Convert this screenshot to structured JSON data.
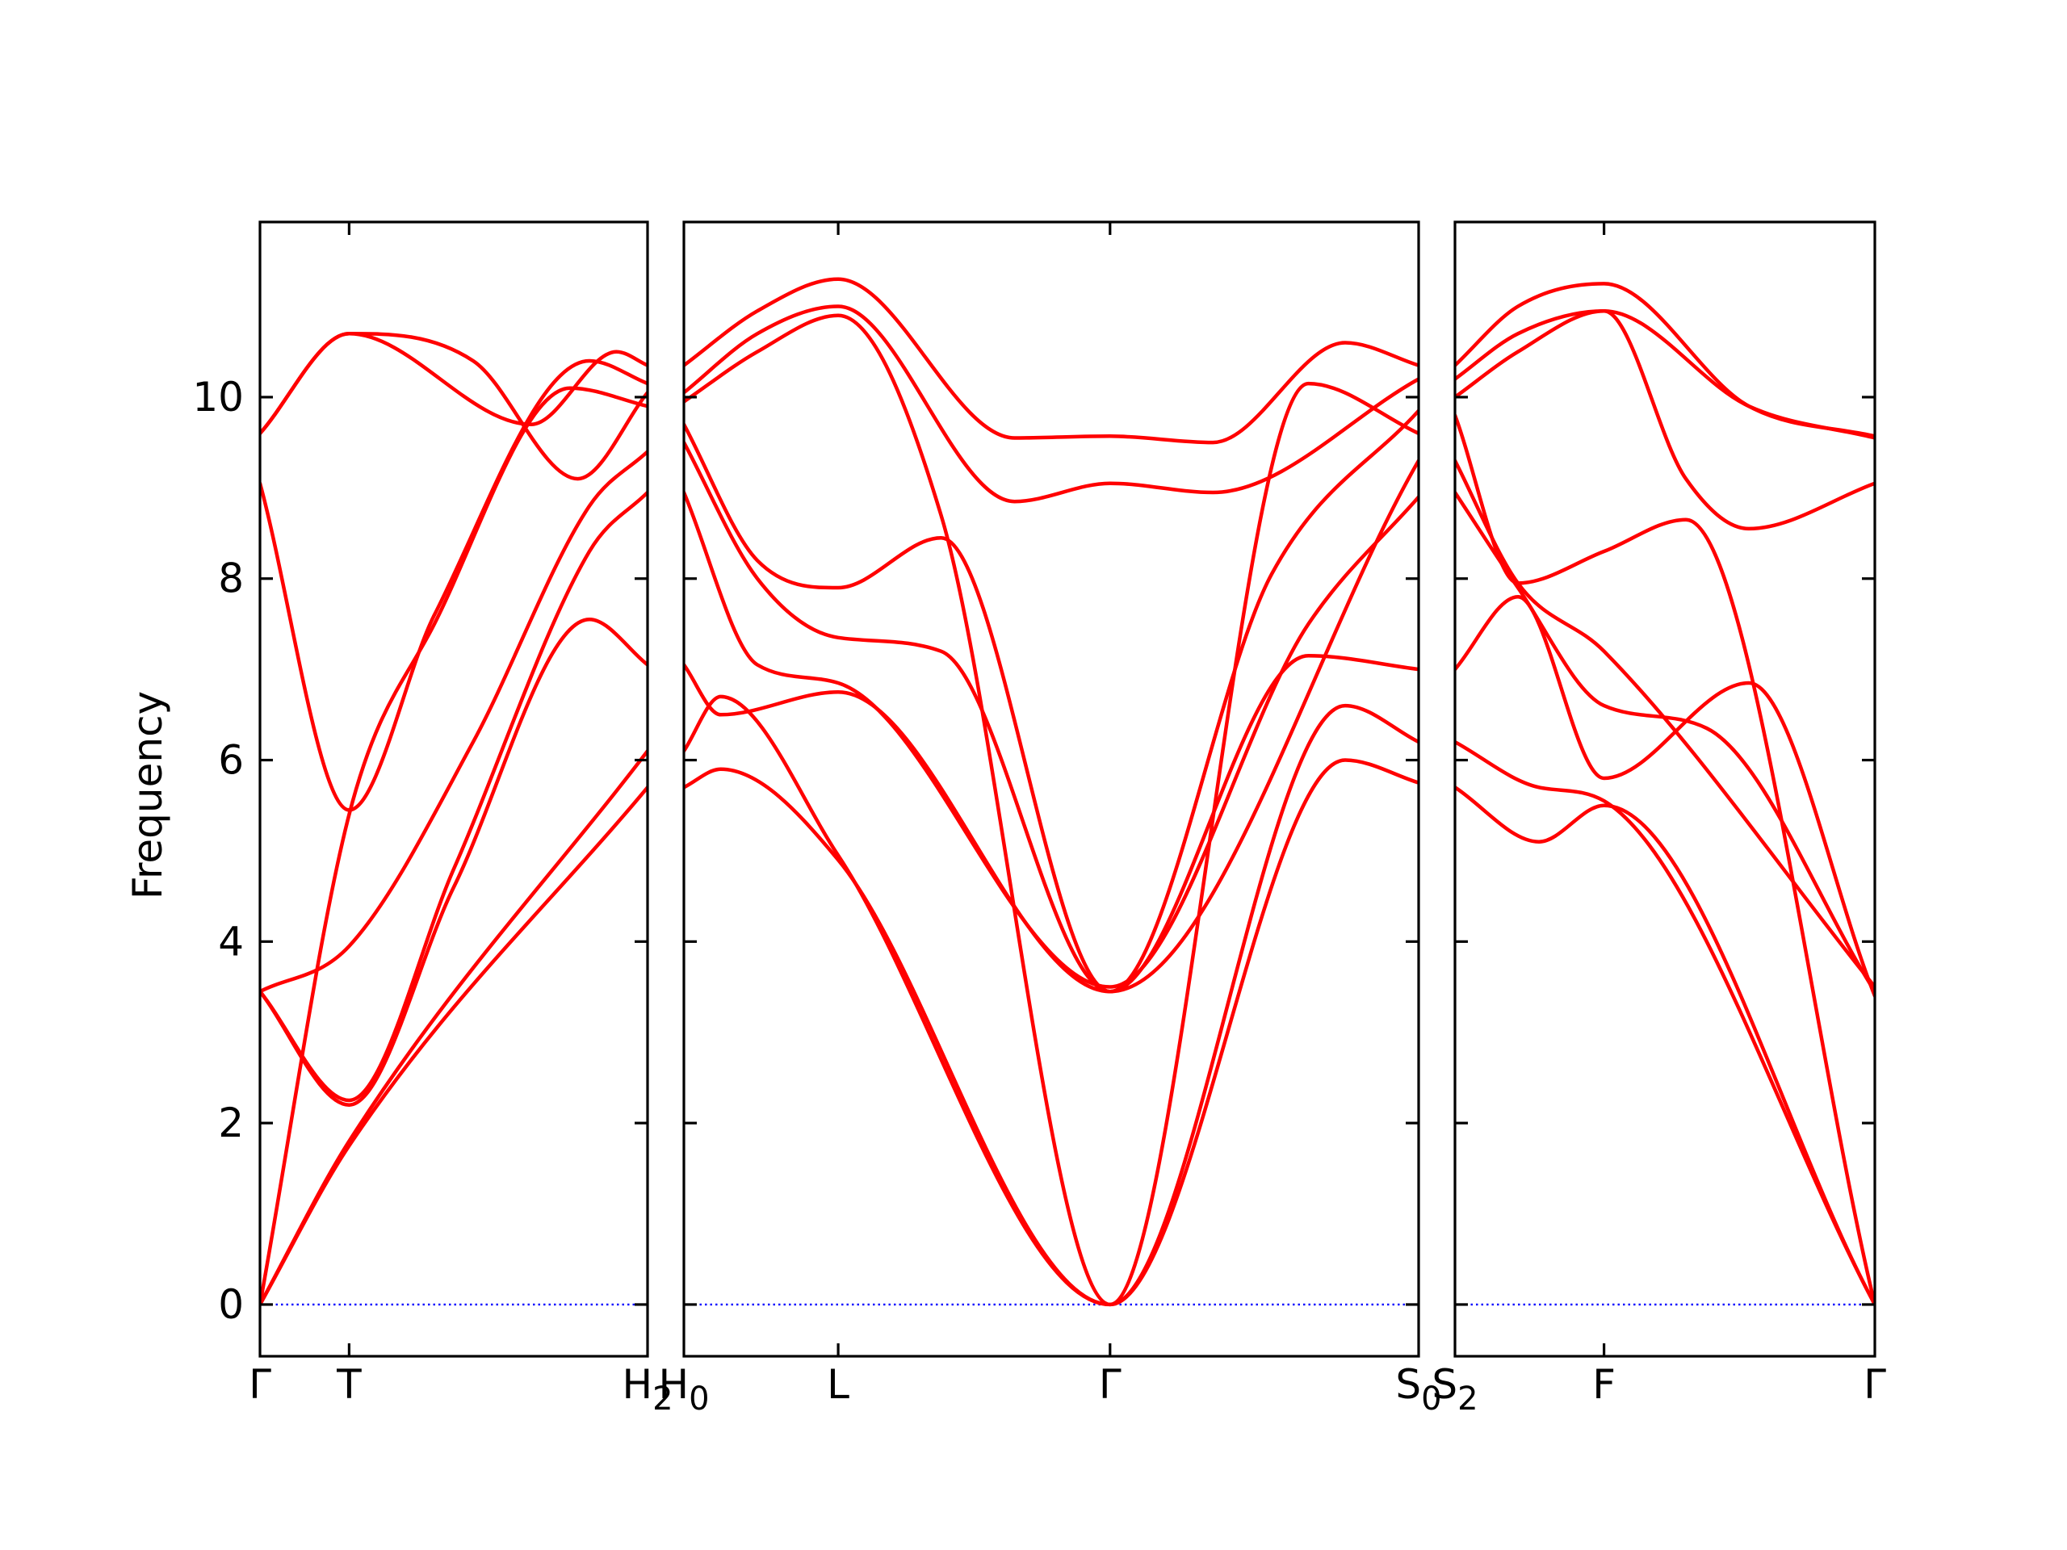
{
  "chart_data": {
    "type": "line",
    "title": "",
    "ylabel": "Frequency",
    "xlabel": "",
    "ylim": [
      -0.57,
      11.93
    ],
    "yticks": [
      0,
      2,
      4,
      6,
      8,
      10
    ],
    "grid": false,
    "legend": "none",
    "colors": {
      "band": "#ff0000",
      "zero_line": "#0000ff",
      "frame": "#000000"
    },
    "zero_line": {
      "value": 0,
      "style": "dotted"
    },
    "panels": [
      {
        "x_range": [
          0,
          1
        ],
        "kpoints": [
          {
            "x": 0.0,
            "label": "Γ"
          },
          {
            "x": 0.23,
            "label": "T"
          },
          {
            "x": 1.0,
            "label": "H",
            "sub": "2"
          }
        ],
        "series": [
          {
            "x": [
              0,
              0.23,
              1.0
            ],
            "values": [
              0,
              1.75,
              5.7
            ]
          },
          {
            "x": [
              0,
              0.23,
              1.0
            ],
            "values": [
              0,
              1.8,
              6.1
            ]
          },
          {
            "x": [
              0,
              0.23,
              0.5,
              0.85,
              1.0
            ],
            "values": [
              3.45,
              2.2,
              4.6,
              7.55,
              7.05
            ]
          },
          {
            "x": [
              0,
              0.23,
              0.5,
              0.85,
              1.0
            ],
            "values": [
              3.45,
              2.25,
              4.8,
              8.3,
              8.95
            ]
          },
          {
            "x": [
              0,
              0.23,
              0.55,
              0.85,
              1.0
            ],
            "values": [
              3.45,
              3.95,
              6.2,
              8.8,
              9.4
            ]
          },
          {
            "x": [
              0,
              0.23,
              0.45,
              0.8,
              1.0
            ],
            "values": [
              0,
              5.4,
              7.5,
              10.1,
              9.9
            ]
          },
          {
            "x": [
              0,
              0.23,
              0.45,
              0.85,
              1.0
            ],
            "values": [
              9.05,
              5.45,
              7.6,
              10.4,
              10.15
            ]
          },
          {
            "x": [
              0,
              0.23,
              0.55,
              0.82,
              1.0
            ],
            "values": [
              9.6,
              10.7,
              10.4,
              9.1,
              10.05
            ]
          },
          {
            "x": [
              0,
              0.23,
              0.7,
              0.92,
              1.0
            ],
            "values": [
              9.6,
              10.7,
              9.7,
              10.5,
              10.35
            ]
          }
        ]
      },
      {
        "x_range": [
          0,
          1
        ],
        "kpoints": [
          {
            "x": 0.0,
            "label": "H",
            "sub": "0"
          },
          {
            "x": 0.21,
            "label": "L"
          },
          {
            "x": 0.58,
            "label": "Γ"
          },
          {
            "x": 1.0,
            "label": "S",
            "sub": "0"
          }
        ],
        "series": [
          {
            "x": [
              0,
              0.05,
              0.21,
              0.58,
              0.9,
              1.0
            ],
            "values": [
              5.7,
              5.9,
              4.9,
              0,
              6.0,
              5.75
            ]
          },
          {
            "x": [
              0,
              0.05,
              0.21,
              0.58,
              0.9,
              1.0
            ],
            "values": [
              6.1,
              6.7,
              4.95,
              0,
              6.6,
              6.2
            ]
          },
          {
            "x": [
              0,
              0.05,
              0.21,
              0.58,
              0.85,
              1.0
            ],
            "values": [
              7.05,
              6.5,
              6.75,
              3.45,
              7.15,
              7.0
            ]
          },
          {
            "x": [
              0,
              0.1,
              0.21,
              0.58,
              0.85,
              1.0
            ],
            "values": [
              8.95,
              7.05,
              6.85,
              3.5,
              7.5,
              8.9
            ]
          },
          {
            "x": [
              0,
              0.1,
              0.21,
              0.35,
              0.58,
              1.0
            ],
            "values": [
              9.5,
              8.0,
              7.35,
              7.2,
              3.45,
              9.3
            ]
          },
          {
            "x": [
              0,
              0.1,
              0.21,
              0.35,
              0.58,
              0.8,
              1.0
            ],
            "values": [
              9.7,
              8.2,
              7.9,
              8.45,
              3.45,
              8.05,
              9.85
            ]
          },
          {
            "x": [
              0,
              0.1,
              0.21,
              0.35,
              0.58,
              0.85,
              1.0
            ],
            "values": [
              9.95,
              10.5,
              10.9,
              8.7,
              0,
              10.15,
              9.6
            ]
          },
          {
            "x": [
              0,
              0.1,
              0.21,
              0.45,
              0.58,
              0.72,
              1.0
            ],
            "values": [
              10.05,
              10.7,
              11.0,
              8.85,
              9.05,
              8.95,
              10.2
            ]
          },
          {
            "x": [
              0,
              0.1,
              0.21,
              0.45,
              0.58,
              0.72,
              0.9,
              1.0
            ],
            "values": [
              10.35,
              10.95,
              11.3,
              9.55,
              9.57,
              9.5,
              10.6,
              10.35
            ]
          }
        ]
      },
      {
        "x_range": [
          0,
          1
        ],
        "kpoints": [
          {
            "x": 0.0,
            "label": "S",
            "sub": "2"
          },
          {
            "x": 0.355,
            "label": "F"
          },
          {
            "x": 1.0,
            "label": "Γ"
          }
        ],
        "series": [
          {
            "x": [
              0,
              0.2,
              0.355,
              1.0
            ],
            "values": [
              5.7,
              5.1,
              5.5,
              0
            ]
          },
          {
            "x": [
              0,
              0.2,
              0.355,
              1.0
            ],
            "values": [
              6.2,
              5.7,
              5.55,
              0
            ]
          },
          {
            "x": [
              0,
              0.15,
              0.355,
              0.7,
              1.0
            ],
            "values": [
              7.0,
              7.8,
              5.8,
              6.85,
              3.4
            ]
          },
          {
            "x": [
              0,
              0.15,
              0.355,
              0.6,
              1.0
            ],
            "values": [
              8.95,
              7.9,
              6.6,
              6.35,
              3.45
            ]
          },
          {
            "x": [
              0,
              0.15,
              0.355,
              1.0
            ],
            "values": [
              9.3,
              7.95,
              7.2,
              3.5
            ]
          },
          {
            "x": [
              0,
              0.15,
              0.355,
              0.55,
              1.0
            ],
            "values": [
              9.8,
              7.95,
              8.3,
              8.65,
              0
            ]
          },
          {
            "x": [
              0,
              0.15,
              0.355,
              0.55,
              0.7,
              1.0
            ],
            "values": [
              10.0,
              10.5,
              10.95,
              9.1,
              8.55,
              9.05
            ]
          },
          {
            "x": [
              0,
              0.15,
              0.355,
              0.7,
              1.0
            ],
            "values": [
              10.2,
              10.7,
              10.95,
              9.9,
              9.55
            ]
          },
          {
            "x": [
              0,
              0.15,
              0.355,
              0.7,
              1.0
            ],
            "values": [
              10.35,
              11.0,
              11.25,
              9.9,
              9.57
            ]
          }
        ]
      }
    ]
  }
}
